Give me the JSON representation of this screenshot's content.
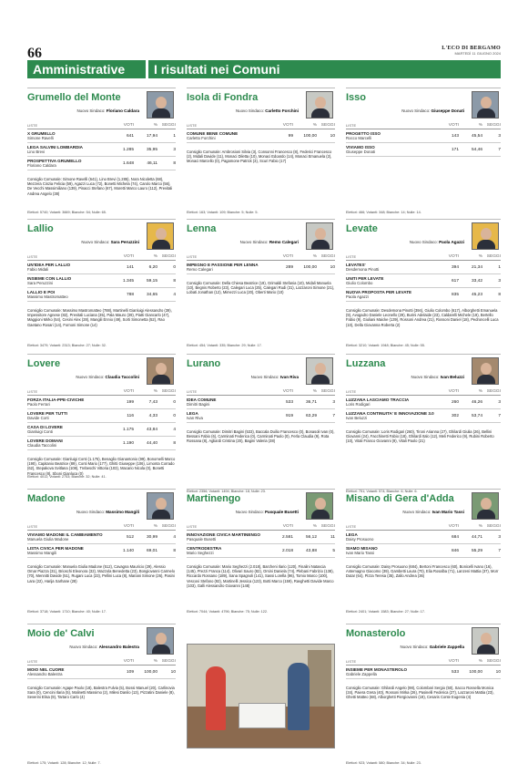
{
  "header": {
    "page_number": "66",
    "newspaper": "L'ECO DI BERGAMO",
    "date": "MARTEDÌ 11 GIUGNO 2024",
    "section": "Amministrative",
    "title": "I risultati nei Comuni"
  },
  "labels": {
    "new_mayor": "Nuovo Sindaco:",
    "col_list": "LISTE",
    "col_votes": "VOTI",
    "col_pct": "%",
    "col_seats": "SEGGI"
  },
  "comuni": [
    {
      "name": "Grumello del Monte",
      "mayor": "Floriano Caldara",
      "lists": [
        {
          "list": "X GRUMELLO",
          "cand": "Simone Ravelli",
          "votes": "641",
          "pct": "17,94",
          "seats": "1"
        },
        {
          "list": "LEGA SALVINI LOMBARDIA",
          "cand": "Lino Brevi",
          "votes": "1.285",
          "pct": "35,95",
          "seats": "3"
        },
        {
          "list": "PROSPETTIVA GRUMELLO",
          "cand": "Floriano Caldara",
          "votes": "1.648",
          "pct": "46,11",
          "seats": "8"
        }
      ],
      "council": "Consiglio Comunale: Simone Ravelli (641), Lino Brevi (1.285), Nora Nicoletta (68), Mezzera Cinzia Felicia (59), Agazzi Luca (72), Bonetti Michela (74), Carolo Marco (56), De Vecchi Massimiliano (139), Pinacci Stefano (67), Moretti Marco Lauro (112), Previtali Andrea Angelo (38)",
      "footer": "Elettori: 5740; Votanti: 3669; Bianche: 54; Nulle: 65."
    },
    {
      "name": "Isola di Fondra",
      "mayor": "Carletto Forchini",
      "lists": [
        {
          "list": "COMUNE BENE COMUNE",
          "cand": "Carletto Forchini",
          "votes": "99",
          "pct": "100,00",
          "seats": "10"
        }
      ],
      "council": "Consiglio Comunale: Ambrosioni Silvia (3), Consonni Francesco (8), Federici Francesco (2), Midali Davide (11), Monaci Diletta (10), Monaci Edoardo (14), Monaci Emanuela (2), Monaci Marcello (0), Pagamone Patrick (3), Scuri Fabio (17)",
      "footer": "Elettori: 163; Votanti: 109; Bianche: 5; Nulle: 5."
    },
    {
      "name": "Isso",
      "mayor": "Giuseppe Donati",
      "lists": [
        {
          "list": "PROGETTO ISSO",
          "cand": "Rocco Marcelli",
          "votes": "143",
          "pct": "45,54",
          "seats": "3"
        },
        {
          "list": "VIVIAMO ISSO",
          "cand": "Giuseppe Donati",
          "votes": "171",
          "pct": "54,46",
          "seats": "7"
        }
      ],
      "council": "",
      "footer": "Elettori: 466; Votanti: 348; Bianche: 14; Nulle: 14."
    },
    {
      "name": "Lallio",
      "mayor": "Sara Peruzzini",
      "lists": [
        {
          "list": "UN'IDEA PER LALLIO",
          "cand": "Fabio Midali",
          "votes": "141",
          "pct": "6,20",
          "seats": "0"
        },
        {
          "list": "INSIEME CON LALLIO",
          "cand": "Sara Peruzzini",
          "votes": "1.345",
          "pct": "59,15",
          "seats": "8"
        },
        {
          "list": "LALLIO E POI",
          "cand": "Massimo Mastromatteo",
          "votes": "788",
          "pct": "34,65",
          "seats": "4"
        }
      ],
      "council": "Consiglio Comunale: Massimo Mastromatteo (788), Martinelli Gianluigi Alessandro (39), Impessitore Agnese (82), Previtali Luciana (35), Pala Mauro (39), Piatti Giancarlo (47), Maggioni Mirko (54), Cesini Alex (28), Mangili Ennio (49), Sorti Simonetta (52), Rao Gaetano Rosari (14), Fornoni Simone (14)",
      "footer": "Elettori: 3479; Votanti: 2313; Bianche: 27; Nulle: 32."
    },
    {
      "name": "Lenna",
      "mayor": "Remo Calegari",
      "lists": [
        {
          "list": "IMPEGNO E PASSIONE PER LENNA",
          "cand": "Remo Calegari",
          "votes": "289",
          "pct": "100,00",
          "seats": "10"
        }
      ],
      "council": "Consiglio Comunale: Della Chiesa Beatrice (19), Grimaldi Stefania (10), Midali Manuela (10), Begnis Roberto (23), Calegari Luca (25), Calegari Rudi (31), Lazzaroni Simone (21), Lobati Jonathan (12), Mimezzi Luca (20), Oberti Mario (10)",
      "footer": "Elettori: 454; Votanti: 335; Bianche: 29; Nulle: 17."
    },
    {
      "name": "Levate",
      "mayor": "Paola Agazzi",
      "lists": [
        {
          "list": "LEVATES'",
          "cand": "Desdemona Pinotti",
          "votes": "394",
          "pct": "21,34",
          "seats": "1"
        },
        {
          "list": "UNITI PER LEVATE",
          "cand": "Giulio Colombo",
          "votes": "617",
          "pct": "33,42",
          "seats": "3"
        },
        {
          "list": "NUOVA PROPOSTA PER LEVATE",
          "cand": "Paola Agazzi",
          "votes": "835",
          "pct": "45,23",
          "seats": "8"
        }
      ],
      "council": "Consiglio Comunale: Desdemona Pinotti (394), Giulio Colombo (617), Alborghetti Emanuela (9), Avogadro Daniele Leonello (29), Burini Adelaide (23), Caldarelli Michele (19), Bertello Fabio (9), Giuliani Maicke (139), Rossoni Andrea (21), Rossoni Daniel (18), Pedroncelli Luca (10), Della Giovanna Roberta (2)",
      "footer": "Elettori: 3210; Votanti: 1948; Bianche: 45; Nulle: 55."
    },
    {
      "name": "Lovere",
      "mayor": "Claudia Taccolini",
      "lists": [
        {
          "list": "FORZA ITALIA-PPE-CIVICHE",
          "cand": "Paolo Ferrari",
          "votes": "199",
          "pct": "7,43",
          "seats": "0"
        },
        {
          "list": "LOVERE PER TUTTI",
          "cand": "Davide Corti",
          "votes": "116",
          "pct": "4,33",
          "seats": "0"
        },
        {
          "list": "CASA DI LOVERE",
          "cand": "Gianluigi Conti",
          "votes": "1.175",
          "pct": "43,84",
          "seats": "4"
        },
        {
          "list": "LOVERE DOMANI",
          "cand": "Claudia Taccolini",
          "votes": "1.190",
          "pct": "44,40",
          "seats": "8"
        }
      ],
      "council": "Consiglio Comunale: Gianluigi Conti (1.175), Benaglio Gianantonio (99), Bonomelli Marco (190), Capitanio Beatrice (89), Conti Mario (177), Ghitti Giuseppe (106), Limonta Corrado (62), Stepakova Svitlana (108), Trebeschi Vittoria (103), Macario Nicola (0), Bonetti Francesco (8), Sboni Gianluca (0)",
      "footer": "Elettori: 4011; Votanti: 2753; Bianche: 32; Nulle: 41."
    },
    {
      "name": "Lurano",
      "mayor": "Ivan Riva",
      "lists": [
        {
          "list": "IDEA COMUNE",
          "cand": "Dimitri Bagini",
          "votes": "533",
          "pct": "36,71",
          "seats": "3"
        },
        {
          "list": "LEGA",
          "cand": "Ivan Riva",
          "votes": "919",
          "pct": "63,29",
          "seats": "7"
        }
      ],
      "council": "Consiglio Comunale: Dimitri Bagini (533), Baccala Duilio Francesco (0), Bonasoli Ivan (0), Bessani Fabio (6), Carminati Federica (0), Carminati Paolo (0), Ferla Claudia (9), Rota Rossana (8), Agliardi Cristina (20), Bagini Valeria (38)",
      "footer": "Elettori: 2356; Votanti: 1494; Bianche: 18; Nulle: 23."
    },
    {
      "name": "Luzzana",
      "mayor": "Ivan Beluzzi",
      "lists": [
        {
          "list": "LUZZANA LASCIAMO TRACCIA",
          "cand": "Loris Rodigari",
          "votes": "260",
          "pct": "46,26",
          "seats": "3"
        },
        {
          "list": "LUZZANA CONTINUITA' E INNOVAZIONE 3.0",
          "cand": "Ivan Beluzzi",
          "votes": "302",
          "pct": "53,74",
          "seats": "7"
        }
      ],
      "council": "Consiglio Comunale: Loris Rodigari (260), Tironi Arianna (27), Ghilardi Giulia (26), Bellini Giovanni (24), Facchinetti Fabio (18), Ghilardi Italo (12), Meli Federico (9), Rubini Roberto (10), Vitali Franco Giovanni (9), Vitali Paolo (21)",
      "footer": "Elettori: 751; Votanti: 574; Bianche: 6; Nulle: 6."
    },
    {
      "name": "Madone",
      "mayor": "Massimo Mangili",
      "lists": [
        {
          "list": "VIVIAMO MADONE IL CAMBIAMENTO",
          "cand": "Manuela Giulia Madone",
          "votes": "512",
          "pct": "30,99",
          "seats": "4"
        },
        {
          "list": "LISTA CIVICA PER MADONE",
          "cand": "Massimo Mangili",
          "votes": "1.140",
          "pct": "69,01",
          "seats": "8"
        }
      ],
      "council": "Consiglio Comunale: Manuela Giulia Madone (512), Cavagna Mauricio (29), Alessio Omar Piazza (31), Brioschi Eleonora (32), Mazzola Benedetta (23), Bongiovanni Carmelo (70), Mennitti Davide (51), Rugani Luca (23), Pellini Luca (8), Mariani Simone (26), Pasini Lara (22), Harija Sarhane (28)",
      "footer": "Elettori: 3718; Votanti: 1710; Bianche: 40; Nulle: 17."
    },
    {
      "name": "Martinengo",
      "mayor": "Pasquale Busetti",
      "lists": [
        {
          "list": "INNOVAZIONE CIVICA MARTINENGO",
          "cand": "Pasquale Busetti",
          "votes": "2.581",
          "pct": "56,12",
          "seats": "11"
        },
        {
          "list": "CENTRODESTRA",
          "cand": "Mario Seghezzi",
          "votes": "2.018",
          "pct": "43,88",
          "seats": "5"
        }
      ],
      "council": "Consiglio Comunale: Mario Seghezzi (2.018), Barcheni Ilario (120), Finalini Natascia (145), Prezzi Franca (114), Olivari Sauro (82), Orsini Daniela (74), Plebani Fabrizio (138), Riccardo Rossano (189), Sana Spagnoli (141), Sassi Lorella (96), Tomio Marco (100), Vescovi Stefano (92), Martinelli Jessica (123), Botti Marco (159), Ravghetti Davide Marco (103), Galli Alessandro Giovanni (148)",
      "footer": "Elettori: 7044; Votanti: 4796; Bianche: 75; Nulle: 122."
    },
    {
      "name": "Misano di Gera d'Adda",
      "mayor": "Ivan Mario Tassi",
      "lists": [
        {
          "list": "LEGA",
          "cand": "Daisy Prosuono",
          "votes": "684",
          "pct": "44,71",
          "seats": "3"
        },
        {
          "list": "SIAMO MISANO",
          "cand": "Ivan Mario Tassi",
          "votes": "846",
          "pct": "55,29",
          "seats": "7"
        }
      ],
      "council": "Consiglio Comunale: Daisy Prosuono (684), Bertoni Francesco (60), Bonicelli Ivano (16), Antemagno Giacomo (39), Gambetti Laura (70), Elia Rosalba (71), Lanzeni Mattia (37), Morr Dutar (64), Pizza Teresa (35), Zallo Andrea (36)",
      "footer": "Elettori: 2401; Votanti: 1583; Bianche: 27; Nulle: 17."
    },
    {
      "name": "Moio de' Calvi",
      "mayor": "Alessandro Balestra",
      "lists": [
        {
          "list": "MOIO NEL CUORE",
          "cand": "Alessandro Balestra",
          "votes": "109",
          "pct": "100,00",
          "seats": "10"
        }
      ],
      "council": "Consiglio Comunale: Agape Paolo (18), Balestra Fulvia (5), Bossi Manuel (20), Carlinovia Sara (0), Cencini Ilaria (5), Malinetti Massimo (2), Milesi Danilo (13), Pizzatini Daniele (8), Severini Elisa (9), Tartaro Carlo (4)",
      "footer": "Elettori: 175; Votanti: 128; Bianche: 12; Nulle: 7."
    },
    {
      "name": "Monasterolo",
      "mayor": "Gabriele Zappella",
      "lists": [
        {
          "list": "INSIEME PER MONASTEROLO",
          "cand": "Gabriele Zappella",
          "votes": "533",
          "pct": "100,00",
          "seats": "10"
        }
      ],
      "council": "Consiglio Comunale: Ghilardi Angelo (98), Colombari Sergio (50), Sacco Rossella Monica (34), Paiera Greta (40), Rossoni Mirka (26), Pasinelli Federica (27), Lazzaroni Mattia (23), Ghetti Matteo (68), Alborghetti Piergiovanni (19), Cesaris Conte Eugenia (4)",
      "footer": "Elettori: 923; Votanti: 580; Bianche: 34; Nulle: 23."
    }
  ]
}
